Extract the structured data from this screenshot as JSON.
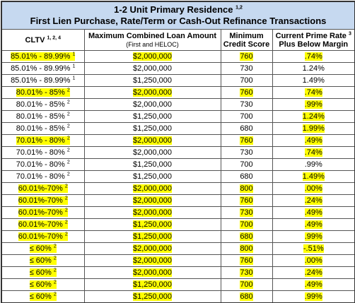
{
  "header": {
    "title": "1-2 Unit Primary Residence",
    "title_sup": "1,2",
    "subtitle": "First Lien Purchase, Rate/Term or Cash-Out Refinance Transactions"
  },
  "table": {
    "columns": [
      {
        "label": "CLTV",
        "sup": "1, 2, 4"
      },
      {
        "label": "Maximum Combined Loan Amount",
        "sub": "(First and HELOC)"
      },
      {
        "label": "Minimum",
        "label2": "Credit Score"
      },
      {
        "label": "Current Prime Rate",
        "sup": "3",
        "label2": "Plus Below Margin"
      }
    ],
    "rows": [
      [
        "85.01% - 89.99%",
        "1",
        "$2,000,000",
        "760",
        ".74%"
      ],
      [
        "85.01% - 89.99%",
        "1",
        "$2,000,000",
        "730",
        "1.24%"
      ],
      [
        "85.01% - 89.99%",
        "1",
        "$1,250,000",
        "700",
        "1.49%"
      ],
      [
        "80.01% - 85%",
        "2",
        "$2,000,000",
        "760",
        ".74%"
      ],
      [
        "80.01% - 85%",
        "2",
        "$2,000,000",
        "730",
        ".99%"
      ],
      [
        "80.01% - 85%",
        "2",
        "$1,250,000",
        "700",
        "1.24%"
      ],
      [
        "80.01% - 85%",
        "2",
        "$1,250,000",
        "680",
        "1.99%"
      ],
      [
        "70.01% - 80%",
        "2",
        "$2,000,000",
        "760",
        ".49%"
      ],
      [
        "70.01% - 80%",
        "2",
        "$2,000,000",
        "730",
        ".74%"
      ],
      [
        "70.01% - 80%",
        "2",
        "$1,250,000",
        "700",
        ".99%"
      ],
      [
        "70.01% - 80%",
        "2",
        "$1,250,000",
        "680",
        "1.49%"
      ],
      [
        "60.01%-70%",
        "2",
        "$2,000,000",
        "800",
        ".00%"
      ],
      [
        "60.01%-70%",
        "2",
        "$2,000,000",
        "760",
        ".24%"
      ],
      [
        "60.01%-70%",
        "2",
        "$2,000,000",
        "730",
        ".49%"
      ],
      [
        "60.01%-70%",
        "2",
        "$1,250,000",
        "700",
        ".49%"
      ],
      [
        "60.01%-70%",
        "2",
        "$1,250,000",
        "680",
        ".99%"
      ],
      [
        "≤ 60%",
        "2",
        "$2,000,000",
        "800",
        "-.51%"
      ],
      [
        "≤ 60%",
        "2",
        "$2,000,000",
        "760",
        ".00%"
      ],
      [
        "≤ 60%",
        "2",
        "$2,000,000",
        "730",
        ".24%"
      ],
      [
        "≤ 60%",
        "2",
        "$1,250,000",
        "700",
        ".49%"
      ],
      [
        "≤ 60%",
        "2",
        "$1,250,000",
        "680",
        ".99%"
      ]
    ]
  }
}
